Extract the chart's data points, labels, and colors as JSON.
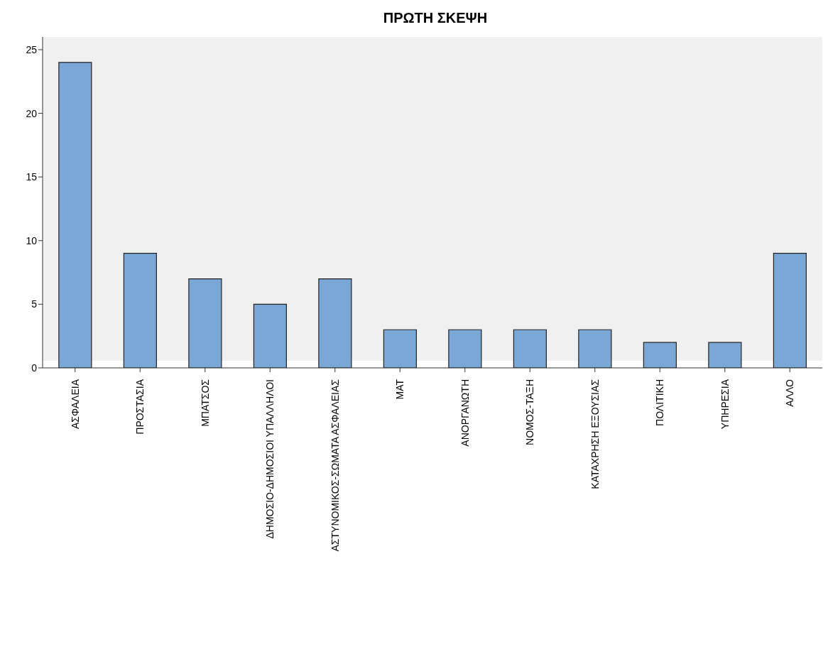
{
  "chart_data": {
    "type": "bar",
    "title": "ΠΡΩΤΗ ΣΚΕΨΗ",
    "categories": [
      "ΑΣΦΑΛΕΙΑ",
      "ΠΡΟΣΤΑΣΙΑ",
      "ΜΠΑΤΣΟΣ",
      "ΔΗΜΟΣΙΟ-ΔΗΜΟΣΙΟΙ ΥΠΑΛΛΗΛΟΙ",
      "ΑΣΤΥΝΟΜΙΚΟΣ-ΣΩΜΑΤΑ ΑΣΦΑΛΕΙΑΣ",
      "ΜΑΤ",
      "ΑΝΟΡΓΑΝΩΤΗ",
      "ΝΟΜΟΣ-ΤΑΞΗ",
      "ΚΑΤΑΧΡΗΣΗ ΕΞΟΥΣΙΑΣ",
      "ΠΟΛΙΤΙΚΗ",
      "ΥΠΗΡΕΣΙΑ",
      "ΑΛΛΟ"
    ],
    "values": [
      24,
      9,
      7,
      5,
      7,
      3,
      3,
      3,
      3,
      2,
      2,
      9
    ],
    "color": "#7aa7d6",
    "ylim": [
      0,
      26
    ],
    "yticks": [
      0,
      5,
      10,
      15,
      20,
      25
    ],
    "grid": false
  }
}
